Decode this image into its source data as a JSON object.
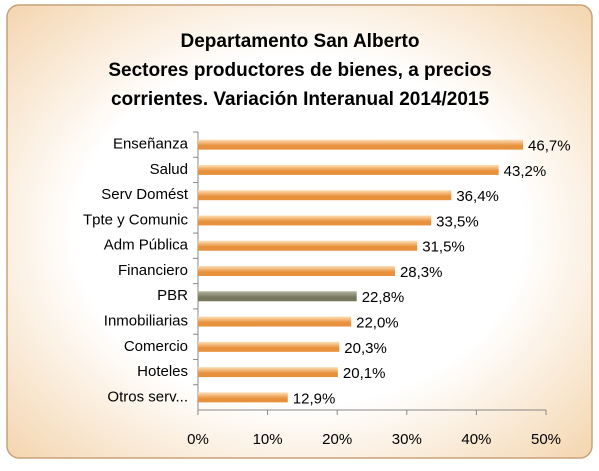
{
  "chart_data": {
    "type": "bar",
    "orientation": "horizontal",
    "title": [
      "Departamento San Alberto",
      "Sectores productores de bienes, a precios",
      "corrientes. Variación Interanual 2014/2015"
    ],
    "categories": [
      "Enseñanza",
      "Salud",
      "Serv Domést",
      "Tpte y Comunic",
      "Adm Pública",
      "Financiero",
      "PBR",
      "Inmobiliarias",
      "Comercio",
      "Hoteles",
      "Otros serv..."
    ],
    "values": [
      46.7,
      43.2,
      36.4,
      33.5,
      31.5,
      28.3,
      22.8,
      22.0,
      20.3,
      20.1,
      12.9
    ],
    "value_labels": [
      "46,7%",
      "43,2%",
      "36,4%",
      "33,5%",
      "31,5%",
      "28,3%",
      "22,8%",
      "22,0%",
      "20,3%",
      "20,1%",
      "12,9%"
    ],
    "colors": [
      "#e8913c",
      "#e8913c",
      "#e8913c",
      "#e8913c",
      "#e8913c",
      "#e8913c",
      "#77775f",
      "#e8913c",
      "#e8913c",
      "#e8913c",
      "#e8913c"
    ],
    "xlim": [
      0,
      50
    ],
    "xticks": [
      {
        "value": 0,
        "label": "0%"
      },
      {
        "value": 10,
        "label": "10%"
      },
      {
        "value": 20,
        "label": "20%"
      },
      {
        "value": 30,
        "label": "30%"
      },
      {
        "value": 40,
        "label": "40%"
      },
      {
        "value": 50,
        "label": "50%"
      }
    ]
  }
}
